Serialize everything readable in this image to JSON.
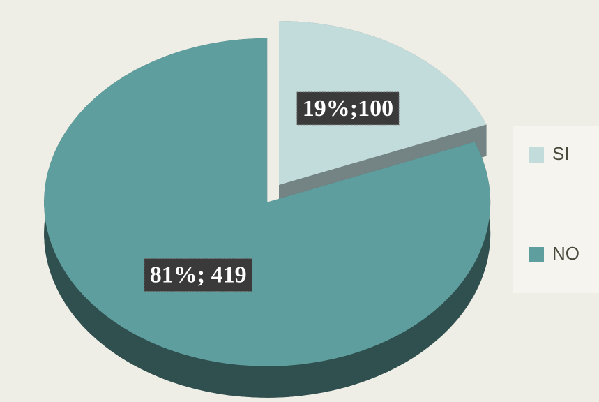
{
  "chart_data": {
    "type": "pie",
    "labels": [
      "SI",
      "NO"
    ],
    "values": [
      19,
      81
    ],
    "value_labels": [
      "19%;100",
      "81%; 419"
    ],
    "colors": [
      "#c2dbdb",
      "#5f9e9e"
    ],
    "legend": "right"
  }
}
